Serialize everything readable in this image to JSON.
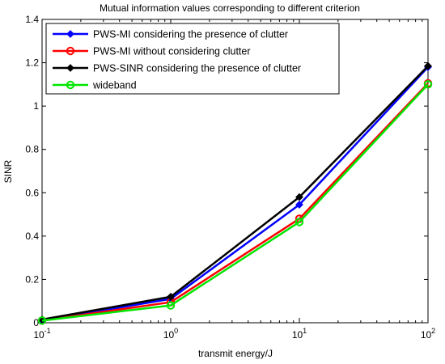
{
  "chart_data": {
    "type": "line",
    "title": "Mutual information values corresponding to different criterion",
    "xlabel": "transmit energy/J",
    "ylabel": "SINR",
    "x_scale": "log",
    "x": [
      0.1,
      1,
      10,
      100
    ],
    "x_ticks": [
      {
        "base": "10",
        "exp": "-1"
      },
      {
        "base": "10",
        "exp": "0"
      },
      {
        "base": "10",
        "exp": "1"
      },
      {
        "base": "10",
        "exp": "2"
      }
    ],
    "y_ticks": [
      "0",
      "0.2",
      "0.4",
      "0.6",
      "0.8",
      "1",
      "1.2",
      "1.4"
    ],
    "xlim": [
      0.1,
      100
    ],
    "ylim": [
      0,
      1.4
    ],
    "grid": false,
    "legend_position": "top-left",
    "series": [
      {
        "name": "PWS-MI considering the presence of clutter",
        "color": "#0000ff",
        "marker": "diamond",
        "values": [
          0.01,
          0.11,
          0.545,
          1.18
        ]
      },
      {
        "name": "PWS-MI without considering clutter",
        "color": "#ff0000",
        "marker": "circle",
        "values": [
          0.01,
          0.095,
          0.48,
          1.105
        ]
      },
      {
        "name": "PWS-SINR considering the presence of clutter",
        "color": "#000000",
        "marker": "diamond",
        "values": [
          0.015,
          0.12,
          0.58,
          1.185
        ]
      },
      {
        "name": "wideband",
        "color": "#00e600",
        "marker": "circle",
        "values": [
          0.01,
          0.08,
          0.465,
          1.1
        ]
      }
    ]
  }
}
